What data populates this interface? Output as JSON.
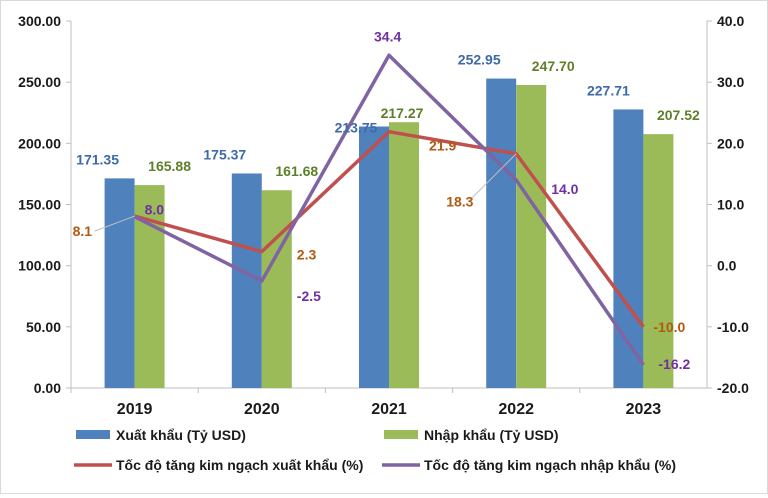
{
  "chart_data": {
    "type": "bar",
    "title": "",
    "categories": [
      "2019",
      "2020",
      "2021",
      "2022",
      "2023"
    ],
    "bar_series": [
      {
        "name": "Xuất khẩu (Tỷ USD)",
        "color": "#4f81bd",
        "label_color": "#3e6aa8",
        "values": [
          171.35,
          175.37,
          213.75,
          252.95,
          227.71
        ],
        "labels": [
          "171.35",
          "175.37",
          "213.75",
          "252.95",
          "227.71"
        ]
      },
      {
        "name": "Nhập khẩu (Tỷ USD)",
        "color": "#9bbb59",
        "label_color": "#5e7f2a",
        "values": [
          165.88,
          161.68,
          217.27,
          247.7,
          207.52
        ],
        "labels": [
          "165.88",
          "161.68",
          "217.27",
          "247.70",
          "207.52"
        ]
      }
    ],
    "line_series": [
      {
        "name": "Tốc độ tăng kim ngạch xuất khẩu (%)",
        "color": "#c0504d",
        "label_color": "#b05a12",
        "values": [
          8.1,
          2.3,
          21.9,
          18.3,
          -10.0
        ],
        "labels": [
          "8.1",
          "2.3",
          "21.9",
          "18.3",
          "-10.0"
        ]
      },
      {
        "name": "Tốc độ tăng kim ngạch nhập khẩu (%)",
        "color": "#8064a2",
        "label_color": "#7030a0",
        "values": [
          8.0,
          -2.5,
          34.4,
          14.0,
          -16.2
        ],
        "labels": [
          "8.0",
          "-2.5",
          "34.4",
          "14.0",
          "-16.2"
        ]
      }
    ],
    "y_left": {
      "range": [
        0,
        300
      ],
      "ticks": [
        "0.00",
        "50.00",
        "100.00",
        "150.00",
        "200.00",
        "250.00",
        "300.00"
      ]
    },
    "y_right": {
      "range": [
        -20,
        40
      ],
      "ticks": [
        "-20.0",
        "-10.0",
        "0.0",
        "10.0",
        "20.0",
        "30.0",
        "40.0"
      ]
    },
    "grid": false,
    "legend_position": "bottom"
  }
}
